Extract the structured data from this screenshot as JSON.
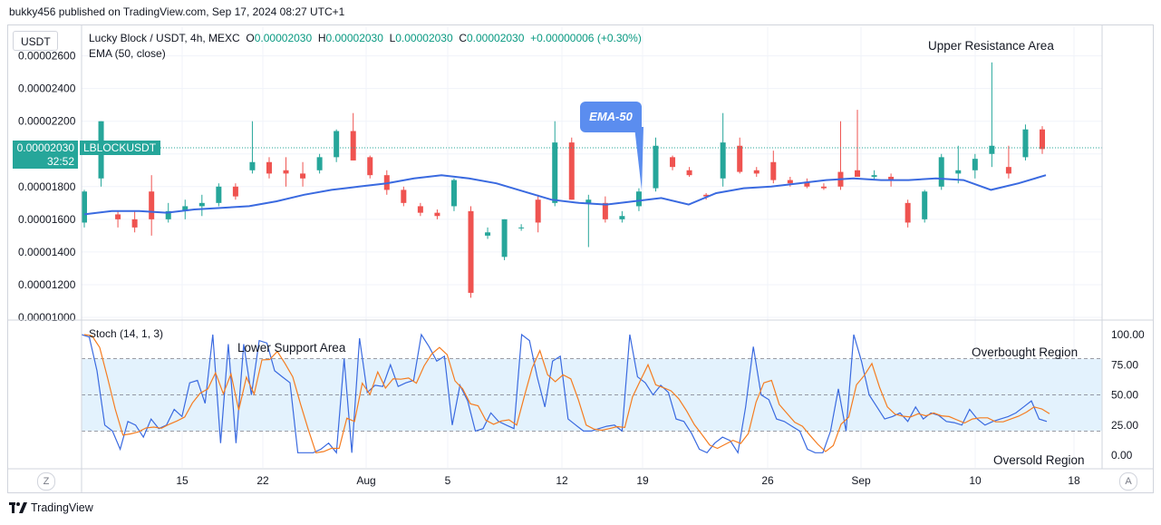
{
  "caption": "bukky456 published on TradingView.com, Sep 17, 2024 08:27 UTC+1",
  "currency": "USDT",
  "legend": {
    "pair": "Lucky Block / USDT, 4h, MEXC",
    "o_label": "O",
    "o": "0.00002030",
    "h_label": "H",
    "h": "0.00002030",
    "l_label": "L",
    "l": "0.00002030",
    "c_label": "C",
    "c": "0.00002030",
    "change": "+0.00000006 (+0.30%)",
    "ema": "EMA (50, close)"
  },
  "stoch_label": "Stoch (14, 1, 3)",
  "price_tag": {
    "price": "0.00002030",
    "countdown": "32:52",
    "symbol": "LBLOCKUSDT"
  },
  "annotations": {
    "upper_resistance": "Upper Resistance Area",
    "lower_support": "Lower Support Area",
    "overbought": "Overbought Region",
    "oversold": "Oversold Region",
    "ema_callout": "EMA-50"
  },
  "buttons": {
    "z": "Z",
    "a": "A"
  },
  "branding": "TradingView",
  "colors": {
    "up": "#26a69a",
    "down": "#ef5350",
    "ema": "#3a6ae0",
    "stoch_k": "#3a6ae0",
    "stoch_d": "#f57c20",
    "band": "#e3f2fd"
  },
  "chart_data": [
    {
      "type": "candlestick",
      "y_ticks": [
        "0.00001000",
        "0.00001200",
        "0.00001400",
        "0.00001600",
        "0.00001800",
        "0.00002000",
        "0.00002200",
        "0.00002400",
        "0.00002600"
      ],
      "x_ticks": [
        "15",
        "22",
        "Aug",
        "5",
        "12",
        "19",
        "26",
        "Sep",
        "10",
        "18"
      ],
      "ylim": [
        1e-05,
        2.62e-05
      ],
      "series": [
        {
          "name": "EMA (50, close)",
          "values": [
            1.63e-05,
            1.65e-05,
            1.65e-05,
            1.64e-05,
            1.66e-05,
            1.67e-05,
            1.68e-05,
            1.71e-05,
            1.75e-05,
            1.78e-05,
            1.8e-05,
            1.82e-05,
            1.85e-05,
            1.87e-05,
            1.85e-05,
            1.82e-05,
            1.77e-05,
            1.72e-05,
            1.7e-05,
            1.69e-05,
            1.71e-05,
            1.73e-05,
            1.69e-05,
            1.76e-05,
            1.79e-05,
            1.8e-05,
            1.82e-05,
            1.84e-05,
            1.85e-05,
            1.84e-05,
            1.84e-05,
            1.85e-05,
            1.84e-05,
            1.78e-05,
            1.82e-05,
            1.87e-05
          ]
        }
      ],
      "candles_ohlc": [
        [
          1.58e-05,
          1.78e-05,
          1.55e-05,
          1.77e-05
        ],
        [
          1.85e-05,
          2.2e-05,
          1.8e-05,
          2.2e-05
        ],
        [
          1.63e-05,
          1.65e-05,
          1.55e-05,
          1.6e-05
        ],
        [
          1.6e-05,
          1.65e-05,
          1.52e-05,
          1.55e-05
        ],
        [
          1.77e-05,
          1.87e-05,
          1.5e-05,
          1.6e-05
        ],
        [
          1.6e-05,
          1.7e-05,
          1.58e-05,
          1.65e-05
        ],
        [
          1.65e-05,
          1.72e-05,
          1.6e-05,
          1.68e-05
        ],
        [
          1.68e-05,
          1.75e-05,
          1.62e-05,
          1.7e-05
        ],
        [
          1.7e-05,
          1.82e-05,
          1.68e-05,
          1.8e-05
        ],
        [
          1.8e-05,
          1.82e-05,
          1.72e-05,
          1.74e-05
        ],
        [
          1.9e-05,
          2.2e-05,
          1.88e-05,
          1.95e-05
        ],
        [
          1.95e-05,
          1.98e-05,
          1.85e-05,
          1.88e-05
        ],
        [
          1.9e-05,
          1.98e-05,
          1.8e-05,
          1.88e-05
        ],
        [
          1.88e-05,
          1.95e-05,
          1.8e-05,
          1.85e-05
        ],
        [
          1.9e-05,
          2e-05,
          1.88e-05,
          1.98e-05
        ],
        [
          1.98e-05,
          2.15e-05,
          1.95e-05,
          2.14e-05
        ],
        [
          2.14e-05,
          2.25e-05,
          1.96e-05,
          1.96e-05
        ],
        [
          1.98e-05,
          1.99e-05,
          1.85e-05,
          1.87e-05
        ],
        [
          1.87e-05,
          1.9e-05,
          1.75e-05,
          1.78e-05
        ],
        [
          1.78e-05,
          1.8e-05,
          1.68e-05,
          1.7e-05
        ],
        [
          1.68e-05,
          1.7e-05,
          1.62e-05,
          1.64e-05
        ],
        [
          1.64e-05,
          1.66e-05,
          1.6e-05,
          1.62e-05
        ],
        [
          1.68e-05,
          1.85e-05,
          1.65e-05,
          1.84e-05
        ],
        [
          1.65e-05,
          1.68e-05,
          1.12e-05,
          1.15e-05
        ],
        [
          1.5e-05,
          1.55e-05,
          1.48e-05,
          1.52e-05
        ],
        [
          1.37e-05,
          1.6e-05,
          1.35e-05,
          1.6e-05
        ],
        [
          1.55e-05,
          1.57e-05,
          1.53e-05,
          1.55e-05
        ],
        [
          1.72e-05,
          1.75e-05,
          1.52e-05,
          1.58e-05
        ],
        [
          1.7e-05,
          2.2e-05,
          1.68e-05,
          2.07e-05
        ],
        [
          2.07e-05,
          2.1e-05,
          1.72e-05,
          1.72e-05
        ],
        [
          1.7e-05,
          1.75e-05,
          1.43e-05,
          1.72e-05
        ],
        [
          1.7e-05,
          1.74e-05,
          1.58e-05,
          1.6e-05
        ],
        [
          1.6e-05,
          1.65e-05,
          1.58e-05,
          1.62e-05
        ],
        [
          1.68e-05,
          1.79e-05,
          1.65e-05,
          1.77e-05
        ],
        [
          1.79e-05,
          2.1e-05,
          1.77e-05,
          2.05e-05
        ],
        [
          1.98e-05,
          1.99e-05,
          1.9e-05,
          1.92e-05
        ],
        [
          1.9e-05,
          1.92e-05,
          1.86e-05,
          1.87e-05
        ],
        [
          1.75e-05,
          1.76e-05,
          1.72e-05,
          1.74e-05
        ],
        [
          1.85e-05,
          2.25e-05,
          1.8e-05,
          2.07e-05
        ],
        [
          2.05e-05,
          2.1e-05,
          1.88e-05,
          1.89e-05
        ],
        [
          1.9e-05,
          1.92e-05,
          1.86e-05,
          1.88e-05
        ],
        [
          1.95e-05,
          2.02e-05,
          1.82e-05,
          1.84e-05
        ],
        [
          1.84e-05,
          1.86e-05,
          1.8e-05,
          1.82e-05
        ],
        [
          1.83e-05,
          1.85e-05,
          1.79e-05,
          1.8e-05
        ],
        [
          1.8e-05,
          1.82e-05,
          1.78e-05,
          1.79e-05
        ],
        [
          1.89e-05,
          2.2e-05,
          1.78e-05,
          1.8e-05
        ],
        [
          1.9e-05,
          2.27e-05,
          1.87e-05,
          1.86e-05
        ],
        [
          1.86e-05,
          1.9e-05,
          1.84e-05,
          1.87e-05
        ],
        [
          1.86e-05,
          1.88e-05,
          1.8e-05,
          1.84e-05
        ],
        [
          1.7e-05,
          1.72e-05,
          1.55e-05,
          1.58e-05
        ],
        [
          1.6e-05,
          1.78e-05,
          1.58e-05,
          1.77e-05
        ],
        [
          1.8e-05,
          2e-05,
          1.78e-05,
          1.98e-05
        ],
        [
          1.88e-05,
          2.05e-05,
          1.82e-05,
          1.9e-05
        ],
        [
          1.9e-05,
          2e-05,
          1.85e-05,
          1.97e-05
        ],
        [
          2e-05,
          2.56e-05,
          1.92e-05,
          2.05e-05
        ],
        [
          1.92e-05,
          2.05e-05,
          1.85e-05,
          1.88e-05
        ],
        [
          1.98e-05,
          2.18e-05,
          1.96e-05,
          2.15e-05
        ],
        [
          2.15e-05,
          2.17e-05,
          2e-05,
          2.03e-05
        ]
      ]
    },
    {
      "type": "line",
      "y_ticks": [
        "100.00",
        "75.00",
        "50.00",
        "25.00",
        "0.00"
      ],
      "ylim": [
        -7,
        107
      ],
      "levels": [
        80,
        50,
        20
      ],
      "series": [
        {
          "name": "%K",
          "values": [
            100,
            98,
            70,
            25,
            20,
            5,
            28,
            25,
            15,
            30,
            22,
            25,
            38,
            32,
            60,
            62,
            43,
            100,
            10,
            92,
            10,
            92,
            50,
            95,
            93,
            70,
            65,
            60,
            2,
            2,
            2,
            5,
            10,
            2,
            80,
            2,
            97,
            52,
            58,
            57,
            75,
            57,
            60,
            62,
            100,
            90,
            78,
            82,
            25,
            58,
            45,
            20,
            22,
            35,
            28,
            25,
            22,
            100,
            95,
            65,
            40,
            78,
            82,
            30,
            25,
            20,
            20,
            22,
            24,
            25,
            20,
            100,
            65,
            60,
            50,
            58,
            52,
            30,
            28,
            18,
            5,
            2,
            10,
            15,
            12,
            2,
            40,
            90,
            50,
            46,
            30,
            28,
            24,
            20,
            5,
            2,
            2,
            20,
            55,
            20,
            100,
            78,
            50,
            40,
            30,
            32,
            35,
            28,
            40,
            30,
            35,
            33,
            28,
            27,
            25,
            38,
            30,
            25,
            28,
            30,
            32,
            35,
            40,
            45,
            30,
            28
          ]
        }
      ]
    }
  ]
}
